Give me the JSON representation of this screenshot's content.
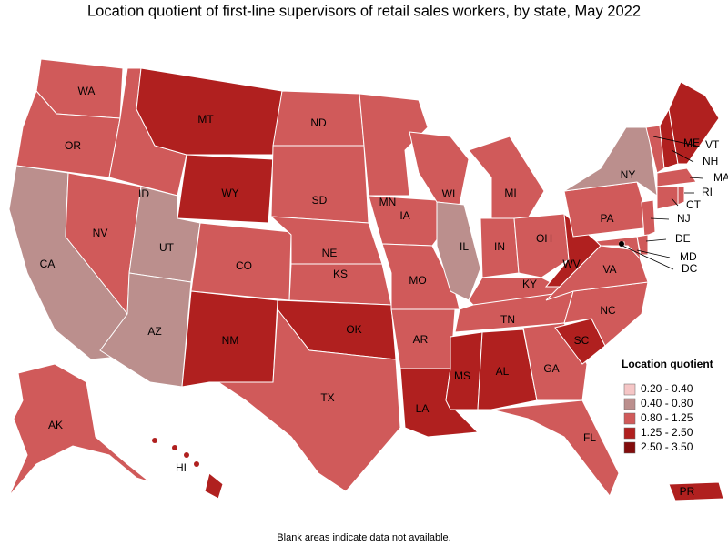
{
  "title": "Location quotient of first-line supervisors of retail sales workers, by state, May 2022",
  "footnote": "Blank areas indicate data not available.",
  "legend": {
    "title": "Location quotient",
    "items": [
      {
        "label": "0.20 - 0.40",
        "color": "#f5c6c6"
      },
      {
        "label": "0.40 - 0.80",
        "color": "#bb8f8d"
      },
      {
        "label": "0.80 - 1.25",
        "color": "#d05a5a"
      },
      {
        "label": "1.25 - 2.50",
        "color": "#b0201f"
      },
      {
        "label": "2.50 - 3.50",
        "color": "#820c0c"
      }
    ]
  },
  "states": [
    {
      "abbr": "WA",
      "color": "#d05a5a"
    },
    {
      "abbr": "OR",
      "color": "#d05a5a"
    },
    {
      "abbr": "CA",
      "color": "#bb8f8d"
    },
    {
      "abbr": "NV",
      "color": "#d05a5a"
    },
    {
      "abbr": "ID",
      "color": "#d05a5a"
    },
    {
      "abbr": "MT",
      "color": "#b0201f"
    },
    {
      "abbr": "WY",
      "color": "#b0201f"
    },
    {
      "abbr": "UT",
      "color": "#bb8f8d"
    },
    {
      "abbr": "AZ",
      "color": "#bb8f8d"
    },
    {
      "abbr": "CO",
      "color": "#d05a5a"
    },
    {
      "abbr": "NM",
      "color": "#b0201f"
    },
    {
      "abbr": "ND",
      "color": "#d05a5a"
    },
    {
      "abbr": "SD",
      "color": "#d05a5a"
    },
    {
      "abbr": "NE",
      "color": "#d05a5a"
    },
    {
      "abbr": "KS",
      "color": "#d05a5a"
    },
    {
      "abbr": "OK",
      "color": "#b0201f"
    },
    {
      "abbr": "TX",
      "color": "#d05a5a"
    },
    {
      "abbr": "MN",
      "color": "#d05a5a"
    },
    {
      "abbr": "IA",
      "color": "#d05a5a"
    },
    {
      "abbr": "MO",
      "color": "#d05a5a"
    },
    {
      "abbr": "AR",
      "color": "#d05a5a"
    },
    {
      "abbr": "LA",
      "color": "#b0201f"
    },
    {
      "abbr": "WI",
      "color": "#d05a5a"
    },
    {
      "abbr": "IL",
      "color": "#bb8f8d"
    },
    {
      "abbr": "MI",
      "color": "#d05a5a"
    },
    {
      "abbr": "IN",
      "color": "#d05a5a"
    },
    {
      "abbr": "OH",
      "color": "#d05a5a"
    },
    {
      "abbr": "KY",
      "color": "#d05a5a"
    },
    {
      "abbr": "TN",
      "color": "#d05a5a"
    },
    {
      "abbr": "MS",
      "color": "#b0201f"
    },
    {
      "abbr": "AL",
      "color": "#b0201f"
    },
    {
      "abbr": "GA",
      "color": "#d05a5a"
    },
    {
      "abbr": "FL",
      "color": "#d05a5a"
    },
    {
      "abbr": "SC",
      "color": "#b0201f"
    },
    {
      "abbr": "NC",
      "color": "#d05a5a"
    },
    {
      "abbr": "VA",
      "color": "#d05a5a"
    },
    {
      "abbr": "WV",
      "color": "#b0201f"
    },
    {
      "abbr": "PA",
      "color": "#d05a5a"
    },
    {
      "abbr": "NY",
      "color": "#bb8f8d"
    },
    {
      "abbr": "VT",
      "color": "#d05a5a"
    },
    {
      "abbr": "NH",
      "color": "#b0201f"
    },
    {
      "abbr": "ME",
      "color": "#b0201f"
    },
    {
      "abbr": "MA",
      "color": "#d05a5a"
    },
    {
      "abbr": "CT",
      "color": "#d05a5a"
    },
    {
      "abbr": "RI",
      "color": "#d05a5a"
    },
    {
      "abbr": "NJ",
      "color": "#d05a5a"
    },
    {
      "abbr": "DE",
      "color": "#d05a5a"
    },
    {
      "abbr": "MD",
      "color": "#d05a5a"
    },
    {
      "abbr": "DC",
      "color": "#d05a5a"
    },
    {
      "abbr": "AK",
      "color": "#d05a5a"
    },
    {
      "abbr": "HI",
      "color": "#b0201f"
    },
    {
      "abbr": "PR",
      "color": "#b0201f"
    }
  ]
}
